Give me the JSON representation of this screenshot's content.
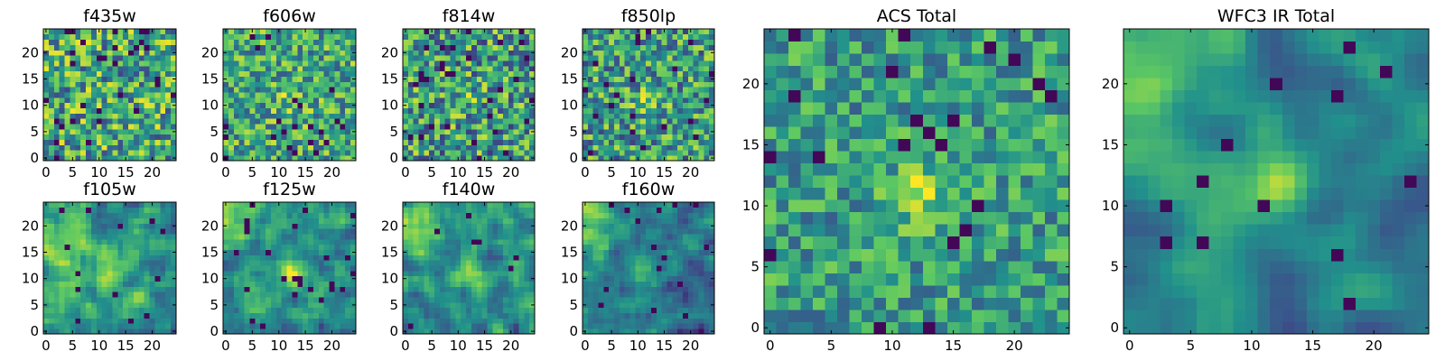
{
  "chart_data": {
    "type": "heatmap",
    "colormap": "viridis",
    "colormap_stops": [
      "#440154",
      "#3b528b",
      "#21918c",
      "#5ec962",
      "#fde725"
    ],
    "grid_size": 25,
    "panels": [
      {
        "id": "f435w",
        "title": "f435w",
        "xticks": [
          0,
          5,
          10,
          15,
          20
        ],
        "yticks": [
          0,
          5,
          10,
          15,
          20
        ],
        "xlim": [
          -0.5,
          24.5
        ],
        "ylim": [
          -0.5,
          24.5
        ],
        "pattern": {
          "seed": 11,
          "noise": 0.75,
          "smooth": 0,
          "base": 0.6,
          "blob_peak": 0.0,
          "blob_center": [
            12,
            11
          ],
          "blob_sigma": 2.0,
          "warm_peak": 0.0,
          "warm_center": [
            1,
            20
          ],
          "warm_sigma": 4.0,
          "dark_frac": 0.05
        }
      },
      {
        "id": "f606w",
        "title": "f606w",
        "xticks": [
          0,
          5,
          10,
          15,
          20
        ],
        "yticks": [
          0,
          5,
          10,
          15,
          20
        ],
        "xlim": [
          -0.5,
          24.5
        ],
        "ylim": [
          -0.5,
          24.5
        ],
        "pattern": {
          "seed": 23,
          "noise": 0.65,
          "smooth": 0,
          "base": 0.6,
          "blob_peak": 0.15,
          "blob_center": [
            12,
            11
          ],
          "blob_sigma": 2.0,
          "warm_peak": 0.0,
          "warm_center": [
            1,
            20
          ],
          "warm_sigma": 4.0,
          "dark_frac": 0.03
        }
      },
      {
        "id": "f814w",
        "title": "f814w",
        "xticks": [
          0,
          5,
          10,
          15,
          20
        ],
        "yticks": [
          0,
          5,
          10,
          15,
          20
        ],
        "xlim": [
          -0.5,
          24.5
        ],
        "ylim": [
          -0.5,
          24.5
        ],
        "pattern": {
          "seed": 37,
          "noise": 0.75,
          "smooth": 0,
          "base": 0.55,
          "blob_peak": 0.1,
          "blob_center": [
            12,
            11
          ],
          "blob_sigma": 2.0,
          "warm_peak": 0.0,
          "warm_center": [
            1,
            20
          ],
          "warm_sigma": 4.0,
          "dark_frac": 0.06
        }
      },
      {
        "id": "f850lp",
        "title": "f850lp",
        "xticks": [
          0,
          5,
          10,
          15,
          20
        ],
        "yticks": [
          0,
          5,
          10,
          15,
          20
        ],
        "xlim": [
          -0.5,
          24.5
        ],
        "ylim": [
          -0.5,
          24.5
        ],
        "pattern": {
          "seed": 41,
          "noise": 0.7,
          "smooth": 0,
          "base": 0.55,
          "blob_peak": 0.2,
          "blob_center": [
            12,
            11
          ],
          "blob_sigma": 2.0,
          "warm_peak": 0.0,
          "warm_center": [
            1,
            20
          ],
          "warm_sigma": 4.0,
          "dark_frac": 0.04
        }
      },
      {
        "id": "f105w",
        "title": "f105w",
        "xticks": [
          0,
          5,
          10,
          15,
          20
        ],
        "yticks": [
          0,
          5,
          10,
          15,
          20
        ],
        "xlim": [
          -0.5,
          24.5
        ],
        "ylim": [
          -0.5,
          24.5
        ],
        "pattern": {
          "seed": 53,
          "noise": 0.55,
          "smooth": 1,
          "base": 0.55,
          "blob_peak": 0.3,
          "blob_center": [
            12,
            11
          ],
          "blob_sigma": 2.0,
          "warm_peak": 0.2,
          "warm_center": [
            2,
            17
          ],
          "warm_sigma": 4.0,
          "dark_frac": 0.03
        }
      },
      {
        "id": "f125w",
        "title": "f125w",
        "xticks": [
          0,
          5,
          10,
          15,
          20
        ],
        "yticks": [
          0,
          5,
          10,
          15,
          20
        ],
        "xlim": [
          -0.5,
          24.5
        ],
        "ylim": [
          -0.5,
          24.5
        ],
        "pattern": {
          "seed": 67,
          "noise": 0.55,
          "smooth": 1,
          "base": 0.5,
          "blob_peak": 0.35,
          "blob_center": [
            12,
            11
          ],
          "blob_sigma": 2.0,
          "warm_peak": 0.3,
          "warm_center": [
            1,
            20
          ],
          "warm_sigma": 4.0,
          "dark_frac": 0.03
        }
      },
      {
        "id": "f140w",
        "title": "f140w",
        "xticks": [
          0,
          5,
          10,
          15,
          20
        ],
        "yticks": [
          0,
          5,
          10,
          15,
          20
        ],
        "xlim": [
          -0.5,
          24.5
        ],
        "ylim": [
          -0.5,
          24.5
        ],
        "pattern": {
          "seed": 79,
          "noise": 0.55,
          "smooth": 1,
          "base": 0.5,
          "blob_peak": 0.35,
          "blob_center": [
            12,
            11
          ],
          "blob_sigma": 2.0,
          "warm_peak": 0.35,
          "warm_center": [
            0,
            20
          ],
          "warm_sigma": 4.0,
          "dark_frac": 0.02
        }
      },
      {
        "id": "f160w",
        "title": "f160w",
        "xticks": [
          0,
          5,
          10,
          15,
          20
        ],
        "yticks": [
          0,
          5,
          10,
          15,
          20
        ],
        "xlim": [
          -0.5,
          24.5
        ],
        "ylim": [
          -0.5,
          24.5
        ],
        "pattern": {
          "seed": 83,
          "noise": 0.5,
          "smooth": 1,
          "base": 0.4,
          "blob_peak": 0.4,
          "blob_center": [
            12,
            11
          ],
          "blob_sigma": 2.0,
          "warm_peak": 0.4,
          "warm_center": [
            0,
            20
          ],
          "warm_sigma": 4.0,
          "dark_frac": 0.03
        }
      },
      {
        "id": "acs-total",
        "title": "ACS Total",
        "xticks": [
          0,
          5,
          10,
          15,
          20
        ],
        "yticks": [
          0,
          5,
          10,
          15,
          20
        ],
        "xlim": [
          -0.5,
          24.5
        ],
        "ylim": [
          -0.5,
          24.5
        ],
        "pattern": {
          "seed": 97,
          "noise": 0.5,
          "smooth": 0,
          "base": 0.55,
          "blob_peak": 0.4,
          "blob_center": [
            12,
            11
          ],
          "blob_sigma": 1.5,
          "warm_peak": 0.0,
          "warm_center": [
            1,
            20
          ],
          "warm_sigma": 4.0,
          "dark_frac": 0.04
        }
      },
      {
        "id": "wfc3-ir-total",
        "title": "WFC3 IR Total",
        "xticks": [
          0,
          5,
          10,
          15,
          20
        ],
        "yticks": [
          0,
          5,
          10,
          15,
          20
        ],
        "xlim": [
          -0.5,
          24.5
        ],
        "ylim": [
          -0.5,
          24.5
        ],
        "pattern": {
          "seed": 101,
          "noise": 0.35,
          "smooth": 2,
          "base": 0.45,
          "blob_peak": 0.5,
          "blob_center": [
            12,
            12
          ],
          "blob_sigma": 2.0,
          "warm_peak": 0.45,
          "warm_center": [
            0,
            20
          ],
          "warm_sigma": 3.5,
          "dark_frac": 0.02
        }
      }
    ]
  }
}
